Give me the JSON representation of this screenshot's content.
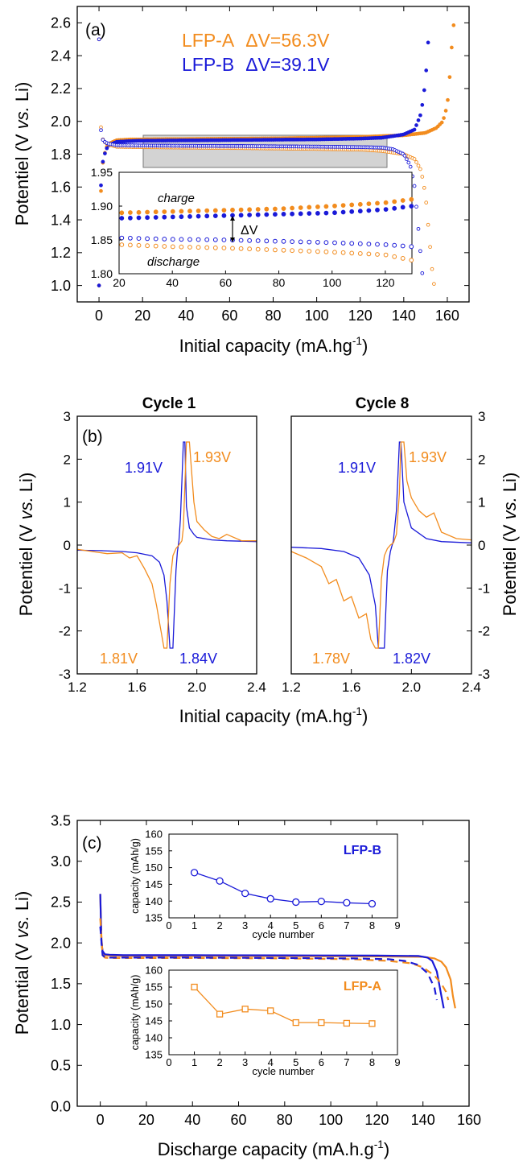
{
  "colors": {
    "lfp_a": "#F28C1E",
    "lfp_b": "#1A1AD8",
    "axis": "#000000",
    "highlight_box": "#D3D3D3"
  },
  "panel_a": {
    "label": "(a)",
    "legend": [
      {
        "name": "LFP-A",
        "delta": "ΔV=56.3V"
      },
      {
        "name": "LFP-B",
        "delta": "ΔV=39.1V"
      }
    ],
    "inset_labels": {
      "charge": "charge",
      "discharge": "discharge",
      "delta_v": "ΔV"
    }
  },
  "panel_b": {
    "label": "(b)",
    "left_title": "Cycle 1",
    "right_title": "Cycle 8",
    "cycle1_annotations": {
      "lfp_b_charge": "1.91V",
      "lfp_a_charge": "1.93V",
      "lfp_a_discharge": "1.81V",
      "lfp_b_discharge": "1.84V"
    },
    "cycle8_annotations": {
      "lfp_b_charge": "1.91V",
      "lfp_a_charge": "1.93V",
      "lfp_a_discharge": "1.78V",
      "lfp_b_discharge": "1.82V"
    }
  },
  "panel_c": {
    "label": "(c)",
    "inset_b_label": "LFP-B",
    "inset_a_label": "LFP-A"
  },
  "chart_data": [
    {
      "id": "a",
      "type": "line",
      "xlabel": "Initial capacity (mA.hg-1)",
      "ylabel": "Potentiel (V vs. Li)",
      "xlim": [
        -10,
        170
      ],
      "ylim": [
        0.9,
        2.7
      ],
      "xticks": [
        0,
        20,
        40,
        60,
        80,
        100,
        120,
        140,
        160
      ],
      "yticks": [
        1.0,
        1.2,
        1.4,
        1.6,
        1.8,
        2.0,
        2.2,
        2.4,
        2.6
      ],
      "series": [
        {
          "name": "LFP-A",
          "role": "charge",
          "x": [
            0,
            0.5,
            1,
            2,
            4,
            8,
            15,
            20,
            40,
            60,
            80,
            100,
            120,
            130,
            140,
            150,
            155,
            158,
            160,
            161,
            162,
            163
          ],
          "y": [
            1.0,
            1.4,
            1.62,
            1.78,
            1.86,
            1.885,
            1.89,
            1.89,
            1.892,
            1.894,
            1.896,
            1.9,
            1.905,
            1.91,
            1.915,
            1.93,
            1.96,
            2.0,
            2.1,
            2.25,
            2.45,
            2.6
          ]
        },
        {
          "name": "LFP-B",
          "role": "charge",
          "x": [
            0,
            0.5,
            1,
            2,
            4,
            8,
            15,
            20,
            40,
            60,
            80,
            100,
            120,
            130,
            140,
            145,
            148,
            150,
            151,
            152
          ],
          "y": [
            1.0,
            1.45,
            1.65,
            1.78,
            1.85,
            1.875,
            1.88,
            1.882,
            1.884,
            1.886,
            1.888,
            1.89,
            1.895,
            1.9,
            1.92,
            1.95,
            2.05,
            2.25,
            2.45,
            2.6
          ]
        },
        {
          "name": "LFP-A",
          "role": "discharge",
          "x": [
            0,
            0.5,
            1,
            2,
            4,
            8,
            20,
            40,
            60,
            80,
            100,
            120,
            130,
            140,
            145,
            148,
            150,
            151,
            152,
            153,
            154
          ],
          "y": [
            2.5,
            2.1,
            1.93,
            1.88,
            1.86,
            1.845,
            1.843,
            1.84,
            1.838,
            1.835,
            1.832,
            1.828,
            1.82,
            1.8,
            1.77,
            1.7,
            1.55,
            1.4,
            1.25,
            1.1,
            1.0
          ]
        },
        {
          "name": "LFP-B",
          "role": "discharge",
          "x": [
            0,
            0.5,
            1,
            2,
            4,
            8,
            20,
            40,
            60,
            80,
            100,
            120,
            130,
            135,
            140,
            143,
            145,
            146,
            147,
            148,
            149
          ],
          "y": [
            2.5,
            2.05,
            1.92,
            1.88,
            1.865,
            1.855,
            1.853,
            1.851,
            1.85,
            1.848,
            1.846,
            1.843,
            1.84,
            1.83,
            1.8,
            1.73,
            1.6,
            1.45,
            1.3,
            1.15,
            1.0
          ]
        }
      ]
    },
    {
      "id": "a-inset",
      "type": "line",
      "xlim": [
        20,
        130
      ],
      "ylim": [
        1.8,
        1.95
      ],
      "xticks": [
        20,
        40,
        60,
        80,
        100,
        120
      ],
      "yticks": [
        1.8,
        1.85,
        1.9,
        1.95
      ]
    },
    {
      "id": "b-cycle1",
      "type": "line",
      "xlim": [
        1.2,
        2.4
      ],
      "ylim": [
        -3,
        3
      ],
      "xticks": [
        1.2,
        1.6,
        2.0,
        2.4
      ],
      "yticks": [
        -3,
        -2,
        -1,
        0,
        1,
        2,
        3
      ],
      "xlabel": "Initial capacity (mA.hg-1)",
      "ylabel": "Potentiel (V vs. Li)",
      "series": [
        {
          "name": "LFP-B",
          "x": [
            1.2,
            1.35,
            1.5,
            1.6,
            1.7,
            1.75,
            1.78,
            1.8,
            1.82,
            1.84,
            1.86,
            1.87,
            1.88,
            1.89,
            1.9,
            1.91,
            1.92,
            1.93,
            1.95,
            1.98,
            2.0,
            2.1,
            2.2,
            2.4
          ],
          "y": [
            -0.12,
            -0.13,
            -0.15,
            -0.18,
            -0.25,
            -0.4,
            -0.7,
            -1.3,
            -2.4,
            -2.4,
            -0.6,
            -0.15,
            0.1,
            0.6,
            1.5,
            2.4,
            2.4,
            0.9,
            0.4,
            0.25,
            0.18,
            0.12,
            0.1,
            0.08
          ]
        },
        {
          "name": "LFP-A",
          "x": [
            1.2,
            1.3,
            1.4,
            1.5,
            1.55,
            1.6,
            1.65,
            1.7,
            1.73,
            1.76,
            1.78,
            1.8,
            1.82,
            1.84,
            1.86,
            1.88,
            1.9,
            1.91,
            1.92,
            1.93,
            1.95,
            1.98,
            2.0,
            2.05,
            2.1,
            2.15,
            2.2,
            2.3,
            2.4
          ],
          "y": [
            -0.1,
            -0.15,
            -0.2,
            -0.18,
            -0.3,
            -0.25,
            -0.55,
            -0.9,
            -1.4,
            -2.0,
            -2.4,
            -2.4,
            -0.9,
            -0.25,
            -0.08,
            0.0,
            0.1,
            0.4,
            1.4,
            2.4,
            2.4,
            1.0,
            0.55,
            0.35,
            0.2,
            0.15,
            0.25,
            0.1,
            0.1
          ]
        }
      ]
    },
    {
      "id": "b-cycle8",
      "type": "line",
      "xlim": [
        1.2,
        2.4
      ],
      "ylim": [
        -3,
        3
      ],
      "xticks": [
        1.2,
        1.6,
        2.0,
        2.4
      ],
      "yticks": [
        -3,
        -2,
        -1,
        0,
        1,
        2,
        3
      ],
      "series": [
        {
          "name": "LFP-B",
          "x": [
            1.2,
            1.4,
            1.55,
            1.65,
            1.72,
            1.76,
            1.78,
            1.8,
            1.82,
            1.84,
            1.86,
            1.88,
            1.9,
            1.92,
            1.93,
            1.95,
            2.0,
            2.1,
            2.2,
            2.4
          ],
          "y": [
            -0.05,
            -0.08,
            -0.15,
            -0.3,
            -0.7,
            -1.4,
            -2.4,
            -2.4,
            -2.4,
            -0.6,
            -0.15,
            0.1,
            0.8,
            2.4,
            2.4,
            1.0,
            0.4,
            0.15,
            0.08,
            0.05
          ]
        },
        {
          "name": "LFP-A",
          "x": [
            1.2,
            1.3,
            1.4,
            1.45,
            1.5,
            1.55,
            1.6,
            1.65,
            1.7,
            1.73,
            1.76,
            1.78,
            1.8,
            1.82,
            1.84,
            1.86,
            1.88,
            1.9,
            1.92,
            1.93,
            1.95,
            1.97,
            2.0,
            2.05,
            2.1,
            2.15,
            2.2,
            2.3,
            2.4
          ],
          "y": [
            -0.15,
            -0.3,
            -0.5,
            -0.9,
            -0.8,
            -1.3,
            -1.2,
            -1.7,
            -1.6,
            -2.2,
            -2.4,
            -2.4,
            -0.8,
            -0.25,
            -0.08,
            0.0,
            0.05,
            0.25,
            1.2,
            2.4,
            2.4,
            1.5,
            1.1,
            0.8,
            0.65,
            0.75,
            0.3,
            0.15,
            0.12
          ]
        }
      ]
    },
    {
      "id": "c",
      "type": "line",
      "xlabel": "Discharge capacity (mA.h.g-1)",
      "ylabel": "Potential (V vs. Li)",
      "xlim": [
        -10,
        160
      ],
      "ylim": [
        0,
        3.5
      ],
      "xticks": [
        0,
        20,
        40,
        60,
        80,
        100,
        120,
        140,
        160
      ],
      "yticks": [
        0.0,
        0.5,
        1.0,
        1.5,
        2.0,
        2.5,
        3.0,
        3.5
      ],
      "series": [
        {
          "name": "LFP-A",
          "style": "solid",
          "x": [
            0,
            0.5,
            1,
            2,
            4,
            10,
            40,
            80,
            120,
            140,
            145,
            148,
            150,
            152,
            153,
            154
          ],
          "y": [
            2.6,
            2.05,
            1.88,
            1.85,
            1.845,
            1.84,
            1.84,
            1.838,
            1.835,
            1.83,
            1.81,
            1.77,
            1.7,
            1.55,
            1.35,
            1.2
          ]
        },
        {
          "name": "LFP-B",
          "style": "solid",
          "x": [
            0,
            0.5,
            1,
            2,
            4,
            10,
            40,
            80,
            120,
            138,
            142,
            144,
            146,
            147,
            148,
            149
          ],
          "y": [
            2.6,
            2.0,
            1.9,
            1.86,
            1.855,
            1.85,
            1.85,
            1.848,
            1.845,
            1.84,
            1.82,
            1.78,
            1.65,
            1.5,
            1.35,
            1.2
          ]
        },
        {
          "name": "LFP-A",
          "style": "dashed",
          "x": [
            0,
            1,
            2,
            4,
            10,
            40,
            80,
            110,
            125,
            135,
            140,
            145,
            148,
            150,
            151
          ],
          "y": [
            2.3,
            1.85,
            1.82,
            1.815,
            1.815,
            1.815,
            1.81,
            1.8,
            1.78,
            1.75,
            1.7,
            1.6,
            1.5,
            1.4,
            1.3
          ]
        },
        {
          "name": "LFP-B",
          "style": "dashed",
          "x": [
            0,
            1,
            2,
            4,
            10,
            40,
            80,
            110,
            125,
            132,
            138,
            142,
            145,
            146
          ],
          "y": [
            2.2,
            1.85,
            1.825,
            1.82,
            1.82,
            1.82,
            1.815,
            1.81,
            1.8,
            1.78,
            1.73,
            1.63,
            1.45,
            1.3
          ]
        }
      ]
    },
    {
      "id": "c-inset-lfp-b",
      "type": "scatter",
      "xlabel": "cycle number",
      "ylabel": "capacity (mAh/g)",
      "xlim": [
        0,
        9
      ],
      "ylim": [
        135,
        160
      ],
      "xticks": [
        0,
        1,
        2,
        3,
        4,
        5,
        6,
        7,
        8,
        9
      ],
      "yticks": [
        135,
        140,
        145,
        150,
        155,
        160
      ],
      "series": [
        {
          "name": "LFP-B",
          "x": [
            1,
            2,
            3,
            4,
            5,
            6,
            7,
            8
          ],
          "y": [
            148.5,
            146.0,
            142.3,
            140.7,
            139.7,
            139.9,
            139.5,
            139.2
          ]
        }
      ]
    },
    {
      "id": "c-inset-lfp-a",
      "type": "scatter",
      "xlabel": "cycle number",
      "ylabel": "capacity (mAh/g)",
      "xlim": [
        0,
        9
      ],
      "ylim": [
        135,
        160
      ],
      "xticks": [
        0,
        1,
        2,
        3,
        4,
        5,
        6,
        7,
        8,
        9
      ],
      "yticks": [
        135,
        140,
        145,
        150,
        155,
        160
      ],
      "series": [
        {
          "name": "LFP-A",
          "x": [
            1,
            2,
            3,
            4,
            5,
            6,
            7,
            8
          ],
          "y": [
            155.0,
            147.0,
            148.5,
            148.0,
            144.5,
            144.5,
            144.3,
            144.2
          ]
        }
      ]
    }
  ]
}
